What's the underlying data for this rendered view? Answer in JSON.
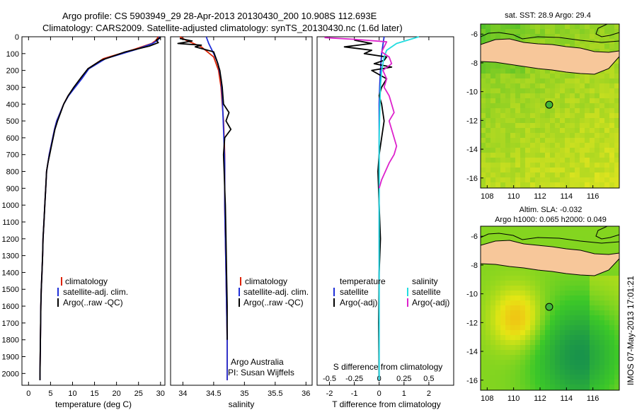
{
  "header": {
    "line1": "Argo profile: CS 5903949_29 28-Apr-2013 20130430_200 10.908S 112.693E",
    "line2": "Climatology: CARS2009. Satellite-adjusted climatology: synTS_20130430.nc (1.6d later)"
  },
  "footer": {
    "stamp": "IMOS 07-May-2013 17:01:21"
  },
  "colors": {
    "climatology": "#dd2200",
    "satellite": "#1f2fd8",
    "argo": "#000000",
    "sal_satellite": "#22dde0",
    "sal_argo": "#dd22cc",
    "land": "#f7c79a"
  },
  "chart_data": [
    {
      "type": "line",
      "panel": "temperature",
      "xlabel": "temperature (deg C)",
      "ylabel": "",
      "xlim": [
        -1.5,
        31
      ],
      "ylim": [
        2070,
        0
      ],
      "xticks": [
        0,
        5,
        10,
        15,
        20,
        25,
        30
      ],
      "yticks": [
        0,
        100,
        200,
        300,
        400,
        500,
        600,
        700,
        800,
        900,
        1000,
        1100,
        1200,
        1300,
        1400,
        1500,
        1600,
        1700,
        1800,
        1900,
        2000
      ],
      "legend": [
        "climatology",
        "satellite-adj. clim.",
        "Argo(..raw -QC)"
      ],
      "series": [
        {
          "name": "climatology",
          "color": "#dd2200",
          "x": [
            29.5,
            29,
            28,
            24,
            17,
            13.5,
            12,
            10.5,
            9,
            8,
            7.2,
            6.4,
            5.9,
            5.5,
            5.1,
            4.7,
            4.4,
            4.1,
            3.9,
            3.7,
            3.5,
            3.3,
            3.2,
            3.05,
            2.9,
            2.8,
            2.7,
            2.6,
            2.6
          ],
          "y": [
            0,
            20,
            40,
            75,
            130,
            190,
            250,
            300,
            350,
            400,
            450,
            500,
            550,
            600,
            650,
            700,
            750,
            800,
            900,
            1000,
            1100,
            1200,
            1300,
            1400,
            1500,
            1600,
            1800,
            2000,
            2040
          ]
        },
        {
          "name": "satellite-adj. clim.",
          "color": "#1f2fd8",
          "x": [
            29.8,
            29.4,
            28.2,
            24.5,
            17.5,
            13.7,
            12.1,
            10.6,
            9.1,
            8,
            7.2,
            6.4,
            5.9,
            5.5,
            5.1,
            4.7,
            4.4,
            4.1,
            3.9,
            3.7,
            3.5,
            3.3,
            3.2,
            3.05,
            2.9,
            2.8,
            2.7,
            2.6,
            2.6
          ],
          "y": [
            0,
            20,
            40,
            75,
            130,
            190,
            250,
            300,
            350,
            400,
            450,
            500,
            550,
            600,
            650,
            700,
            750,
            800,
            900,
            1000,
            1100,
            1200,
            1300,
            1400,
            1500,
            1600,
            1800,
            2000,
            2040
          ]
        },
        {
          "name": "Argo(..raw -QC)",
          "color": "#000000",
          "x": [
            30,
            29,
            29.5,
            27.5,
            22,
            16.5,
            13.5,
            12,
            10.3,
            9,
            8,
            7.3,
            6.6,
            6,
            5.6,
            5.2,
            4.8,
            4.4,
            4.1,
            3.9,
            3.7,
            3.5,
            3.3,
            3.2,
            3.05,
            2.9,
            2.8,
            2.7,
            2.6,
            2.6
          ],
          "y": [
            5,
            20,
            35,
            55,
            90,
            140,
            190,
            240,
            300,
            350,
            400,
            450,
            500,
            550,
            600,
            650,
            700,
            750,
            800,
            900,
            1000,
            1100,
            1200,
            1300,
            1400,
            1500,
            1600,
            1800,
            2000,
            2040
          ]
        }
      ]
    },
    {
      "type": "line",
      "panel": "salinity",
      "xlabel": "salinity",
      "xlim": [
        33.8,
        36.1
      ],
      "ylim": [
        2070,
        0
      ],
      "xticks": [
        34,
        34.5,
        35,
        35.5,
        36
      ],
      "legend": [
        "climatology",
        "satellite-adj. clim.",
        "Argo(..raw -QC)"
      ],
      "annotations": [
        "Argo Australia",
        "PI: Susan Wijffels"
      ],
      "series": [
        {
          "name": "climatology",
          "color": "#dd2200",
          "x": [
            33.95,
            34.05,
            34.3,
            34.5,
            34.58,
            34.62,
            34.64,
            34.66,
            34.67,
            34.68,
            34.68,
            34.68,
            34.68,
            34.69,
            34.7,
            34.71,
            34.72,
            34.72
          ],
          "y": [
            0,
            20,
            60,
            120,
            200,
            300,
            400,
            500,
            600,
            700,
            800,
            900,
            1000,
            1200,
            1400,
            1600,
            1800,
            2040
          ]
        },
        {
          "name": "satellite-adj. clim.",
          "color": "#1f2fd8",
          "x": [
            34.38,
            34.42,
            34.5,
            34.57,
            34.62,
            34.64,
            34.65,
            34.66,
            34.67,
            34.68,
            34.68,
            34.68,
            34.69,
            34.7,
            34.71,
            34.72,
            34.72
          ],
          "y": [
            0,
            40,
            100,
            160,
            250,
            350,
            450,
            550,
            650,
            750,
            850,
            1000,
            1200,
            1400,
            1600,
            1800,
            2040
          ]
        },
        {
          "name": "Argo(..raw -QC)",
          "color": "#000000",
          "x": [
            33.95,
            34.15,
            33.92,
            34.3,
            34.2,
            34.5,
            34.55,
            34.6,
            34.64,
            34.66,
            34.75,
            34.7,
            34.78,
            34.68,
            34.66,
            34.67,
            34.68,
            34.69,
            34.7,
            34.71,
            34.72,
            34.72
          ],
          "y": [
            10,
            25,
            40,
            50,
            60,
            90,
            140,
            200,
            300,
            400,
            450,
            500,
            550,
            600,
            700,
            800,
            900,
            1000,
            1200,
            1400,
            1600,
            1800
          ]
        }
      ]
    },
    {
      "type": "line",
      "panel": "difference",
      "xlabel": "T difference from climatology",
      "xlabel_top": "S difference from climatology",
      "xlim": [
        -2.5,
        3
      ],
      "ylim": [
        2070,
        0
      ],
      "xticks": [
        -2,
        -1,
        0,
        1,
        2
      ],
      "xticks_top": [
        "-0.5",
        "-0.25",
        "0",
        "0.25",
        "0.5"
      ],
      "legend_temperature": [
        "temperature",
        "satellite",
        "Argo(-adj)"
      ],
      "legend_salinity": [
        "salinity",
        "satellite",
        "Argo(-adj)"
      ],
      "series": [
        {
          "name": "temperature satellite",
          "color": "#1f2fd8",
          "x": [
            0.2,
            0.1,
            0.05,
            0.02,
            0,
            0,
            0,
            0,
            0
          ],
          "y": [
            0,
            100,
            200,
            300,
            400,
            600,
            1000,
            1500,
            2040
          ]
        },
        {
          "name": "temperature Argo(-adj)",
          "color": "#000000",
          "x": [
            -1,
            -0.3,
            -1.4,
            -0.3,
            -0.6,
            0.3,
            0.2,
            -0.2,
            0.5,
            -0.3,
            0.3,
            0.1,
            0,
            0.1,
            0.2,
            0.1,
            0,
            -0.05,
            0,
            0.05,
            0,
            -0.02,
            0
          ],
          "y": [
            20,
            40,
            60,
            80,
            100,
            120,
            140,
            160,
            180,
            200,
            250,
            300,
            350,
            400,
            500,
            600,
            700,
            800,
            1000,
            1200,
            1400,
            1700,
            2040
          ]
        },
        {
          "name": "salinity satellite",
          "color": "#22dde0",
          "x": [
            1.6,
            0.7,
            0.3,
            0.2,
            0.15,
            0.1,
            0.05,
            0.03,
            0,
            0,
            0,
            0
          ],
          "y": [
            0,
            40,
            80,
            120,
            160,
            200,
            300,
            400,
            600,
            1000,
            1500,
            2040
          ]
        },
        {
          "name": "salinity Argo(-adj)",
          "color": "#dd22cc",
          "x": [
            -2.2,
            -1,
            0.3,
            0.2,
            0.1,
            0.4,
            0.5,
            0.15,
            0.3,
            0.2,
            0.4,
            0.5,
            0.6,
            0.4,
            0.5,
            0.6,
            0.7,
            0.6,
            0.4,
            0.25,
            0.1,
            0
          ],
          "y": [
            5,
            15,
            30,
            60,
            90,
            120,
            160,
            200,
            250,
            300,
            350,
            400,
            450,
            500,
            550,
            600,
            650,
            700,
            750,
            800,
            850,
            900
          ]
        }
      ]
    },
    {
      "type": "heatmap",
      "panel": "map-sst",
      "title": "sat. SST: 28.9 Argo: 29.4",
      "xlim": [
        107.5,
        118
      ],
      "ylim": [
        -16.7,
        -5.3
      ],
      "xticks": [
        108,
        110,
        112,
        114,
        116
      ],
      "yticks": [
        -6,
        -8,
        -10,
        -12,
        -14,
        -16
      ],
      "marker": [
        112.693,
        -10.908
      ]
    },
    {
      "type": "heatmap",
      "panel": "map-sla",
      "title": "Altim. SLA: -0.032",
      "subtitle": "Argo h1000: 0.065 h2000: 0.049",
      "xlim": [
        107.5,
        118
      ],
      "ylim": [
        -16.7,
        -5.3
      ],
      "xticks": [
        108,
        110,
        112,
        114,
        116
      ],
      "yticks": [
        -6,
        -8,
        -10,
        -12,
        -14,
        -16
      ],
      "marker": [
        112.693,
        -10.908
      ]
    }
  ]
}
